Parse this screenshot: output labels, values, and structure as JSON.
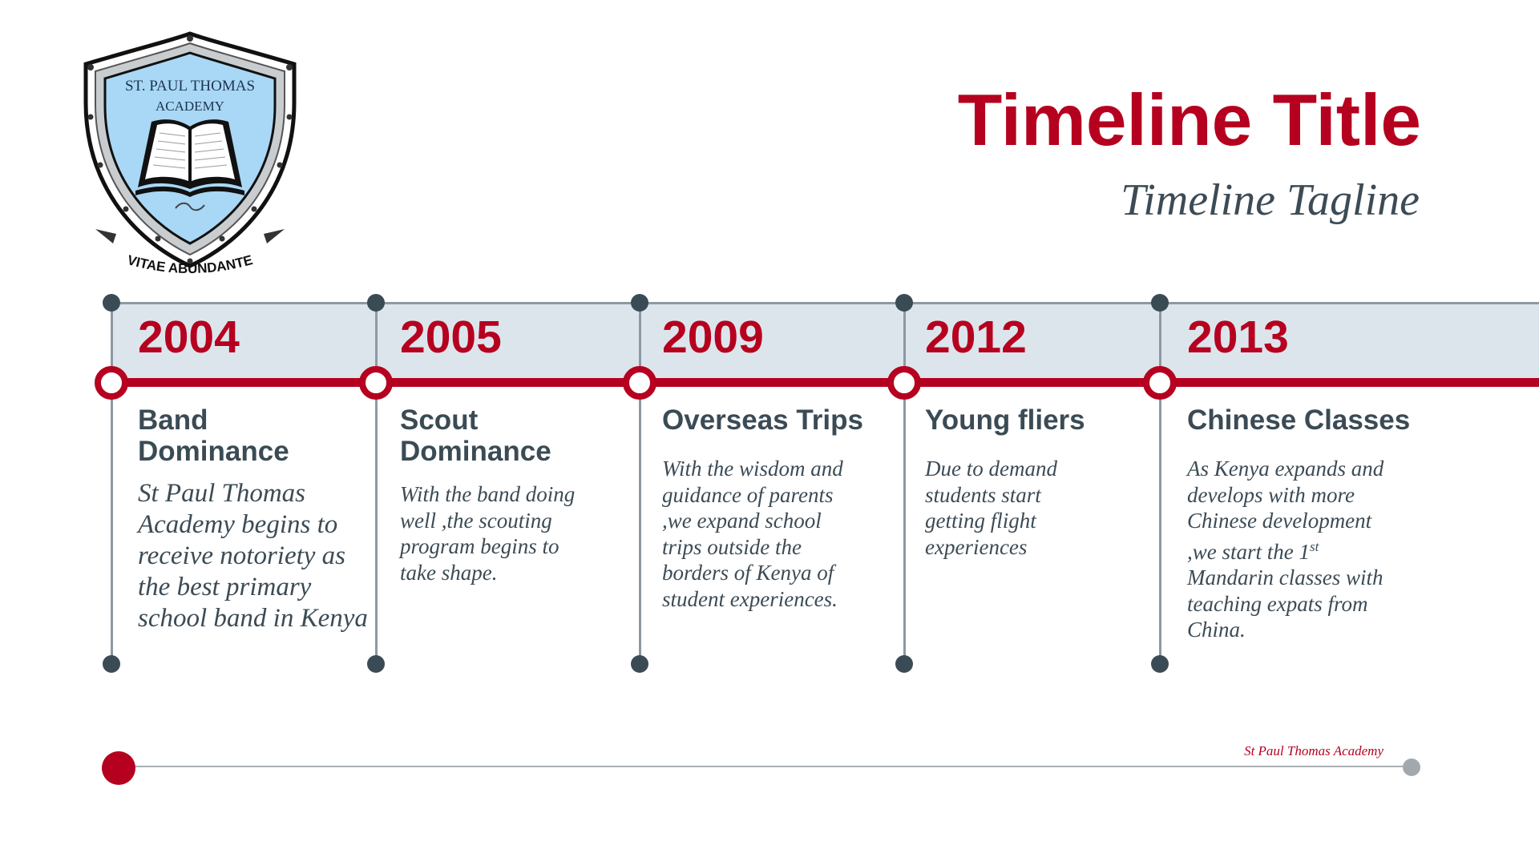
{
  "header": {
    "title": "Timeline Title",
    "tagline": "Timeline Tagline"
  },
  "logo": {
    "line1": "ST. PAUL THOMAS",
    "line2": "ACADEMY",
    "motto": "VITAE ABUNDANTE"
  },
  "timeline": [
    {
      "year": "2004",
      "heading": "Band Dominance",
      "description": "St Paul Thomas Academy begins to receive notoriety as the best primary school band in Kenya"
    },
    {
      "year": "2005",
      "heading": "Scout Dominance",
      "description": "With the band doing well ,the scouting program begins to take shape."
    },
    {
      "year": "2009",
      "heading": "Overseas Trips",
      "description": "With the wisdom and guidance of parents ,we expand school trips outside the borders of Kenya of student experiences."
    },
    {
      "year": "2012",
      "heading": "Young fliers",
      "description": "Due to demand students start getting flight experiences"
    },
    {
      "year": "2013",
      "heading": "Chinese Classes",
      "description_parts": {
        "before": "As Kenya expands and develops with more Chinese development ,we start the 1",
        "superscript": "st",
        "after": " Mandarin classes with teaching expats from China."
      }
    }
  ],
  "footer": {
    "text": "St Paul Thomas Academy"
  },
  "colors": {
    "accent": "#b5001f",
    "dark_text": "#3b4b55",
    "band": "#dde5ec",
    "line": "#8c99a3",
    "shield_fill": "#a8d8f5"
  }
}
